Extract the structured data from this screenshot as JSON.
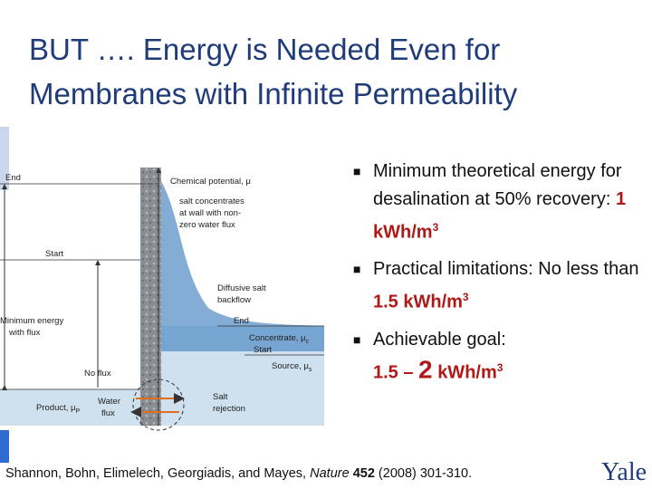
{
  "title": "BUT …. Energy is Needed Even for Membranes with Infinite Permeability",
  "diagram": {
    "axis_label": "Chemical potential, μ",
    "left": {
      "end": "End",
      "start": "Start",
      "min_energy": [
        "Minimum energy",
        "with flux"
      ],
      "no_flux": "No flux",
      "product": "Product, μ",
      "product_sub": "P",
      "water_flux": [
        "Water",
        "flux"
      ]
    },
    "wall": {
      "salt_concentrates": [
        "salt concentrates",
        "at wall with non-",
        "zero water flux"
      ],
      "diffusive": [
        "Diffusive salt",
        "backflow"
      ],
      "end": "End",
      "concentrate": "Concentrate, μ",
      "concentrate_sub": "c",
      "start": "Start",
      "source": "Source, μ",
      "source_sub": "s",
      "salt_rejection": [
        "Salt",
        "rejection"
      ]
    }
  },
  "bullets": [
    {
      "text": "Minimum theoretical energy for desalination at 50% recovery:",
      "highlight": "1 kWh/m",
      "sup": "3"
    },
    {
      "text": "Practical limitations: No less than",
      "highlight": "1.5 kWh/m",
      "sup": "3"
    },
    {
      "text": "Achievable goal:",
      "highlight": "1.5 –",
      "highlight_large": "2",
      "highlight_end": "kWh/m",
      "sup": "3"
    }
  ],
  "citation": {
    "authors": "Shannon, Bohn, Elimelech, Georgiadis, and Mayes,",
    "journal": "Nature",
    "volume": "452",
    "rest": "(2008) 301-310."
  },
  "logo": "Yale"
}
